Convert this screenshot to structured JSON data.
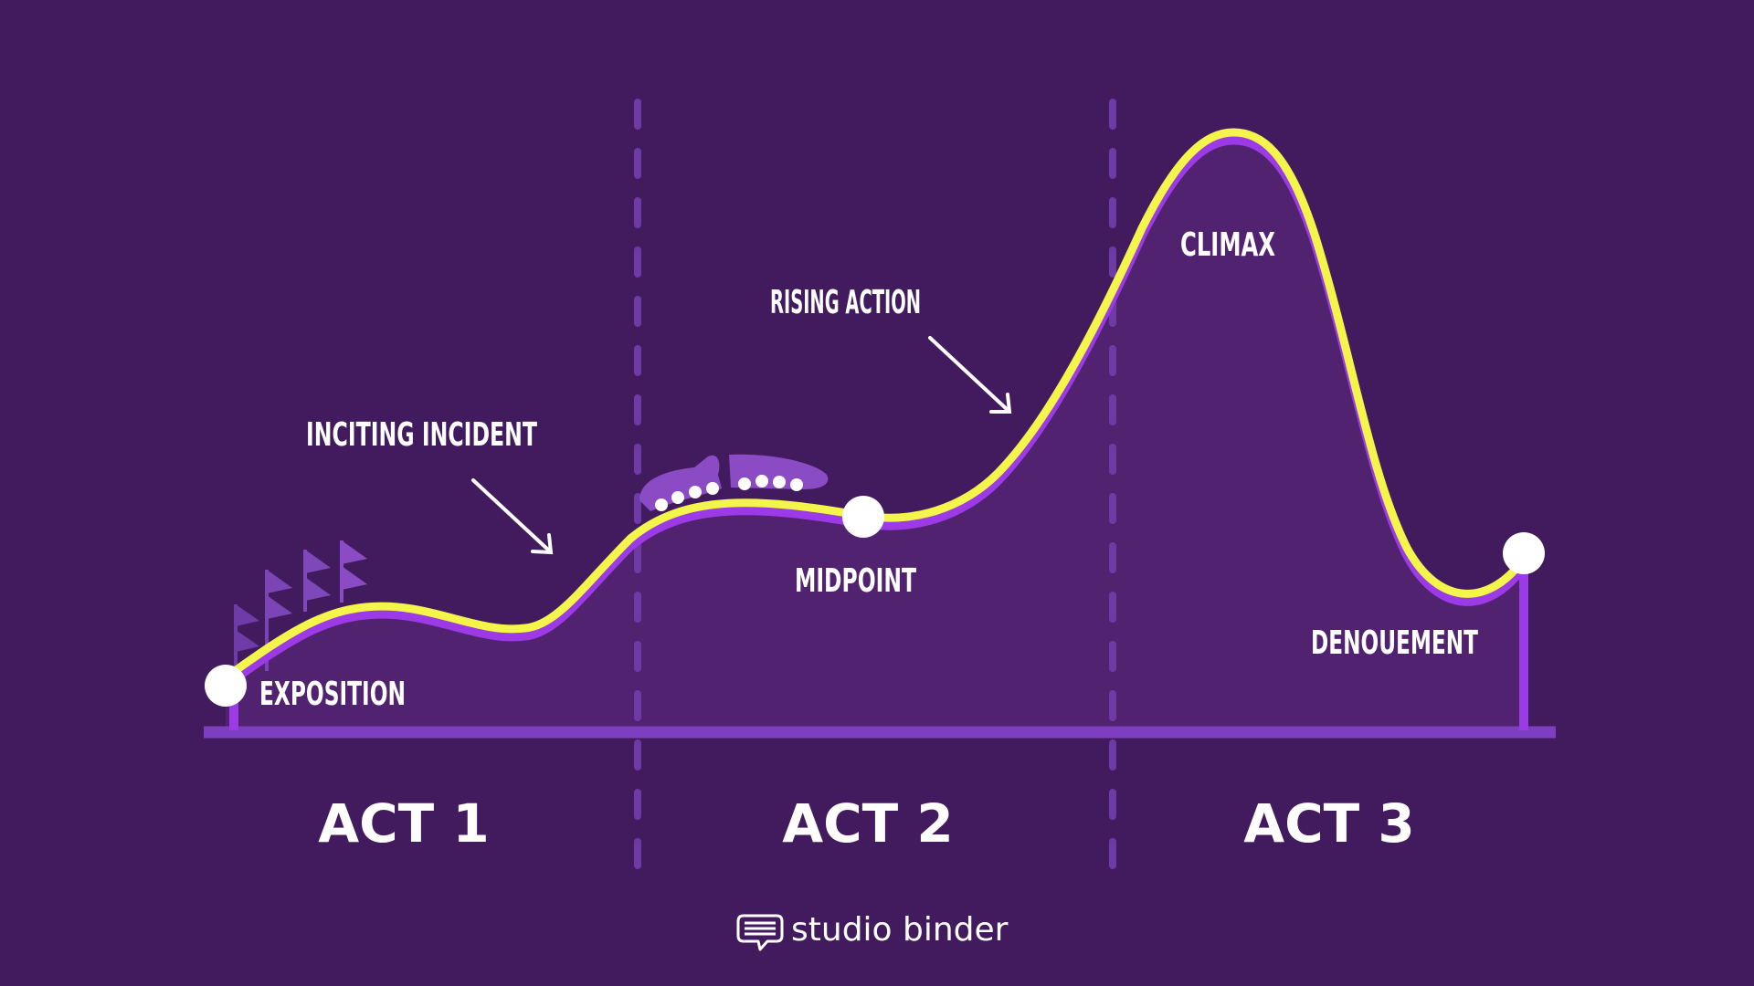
{
  "diagram": {
    "labels": {
      "exposition": "EXPOSITION",
      "inciting_incident": "INCITING INCIDENT",
      "rising_action": "RISING ACTION",
      "midpoint": "MIDPOINT",
      "climax": "CLIMAX",
      "denouement": "DENOUEMENT"
    },
    "acts": [
      "ACT 1",
      "ACT 2",
      "ACT 3"
    ],
    "brand": {
      "name": "studio binder",
      "icon": "chat-bubble-logo-icon"
    },
    "colors": {
      "background": "#421b5f",
      "area_fill": "#51226f",
      "curve_primary": "#f4f54a",
      "curve_shadow": "#9b3ae6",
      "baseline": "#7d3fc0",
      "divider": "#6e3aa6",
      "decor": "#8a4bc4",
      "text": "#ffffff"
    }
  }
}
